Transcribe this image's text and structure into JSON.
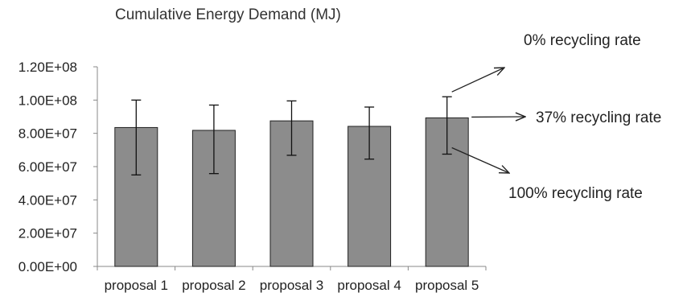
{
  "chart_data": {
    "type": "bar",
    "title": "Cumulative Energy Demand (MJ)",
    "categories": [
      "proposal 1",
      "proposal 2",
      "proposal 3",
      "proposal 4",
      "proposal 5"
    ],
    "series": [
      {
        "values": [
          83500000,
          81800000,
          87500000,
          84200000,
          89300000
        ],
        "error_high": [
          100000000,
          97000000,
          99500000,
          95800000,
          102000000
        ],
        "error_low": [
          55000000,
          55800000,
          66800000,
          64500000,
          67500000
        ]
      }
    ],
    "ylim": [
      0,
      120000000
    ],
    "yticks": [
      "0.00E+00",
      "2.00E+07",
      "4.00E+07",
      "6.00E+07",
      "8.00E+07",
      "1.00E+08",
      "1.20E+08"
    ],
    "ytick_values": [
      0,
      20000000,
      40000000,
      60000000,
      80000000,
      100000000,
      120000000
    ],
    "grid": false,
    "bar_color": "#8c8c8c",
    "annotations": [
      {
        "text": "0% recycling rate",
        "points_to": "proposal 5 upper error bar"
      },
      {
        "text": "37% recycling rate",
        "points_to": "proposal 5 bar top"
      },
      {
        "text": "100% recycling rate",
        "points_to": "proposal 5 lower error bar"
      }
    ]
  }
}
